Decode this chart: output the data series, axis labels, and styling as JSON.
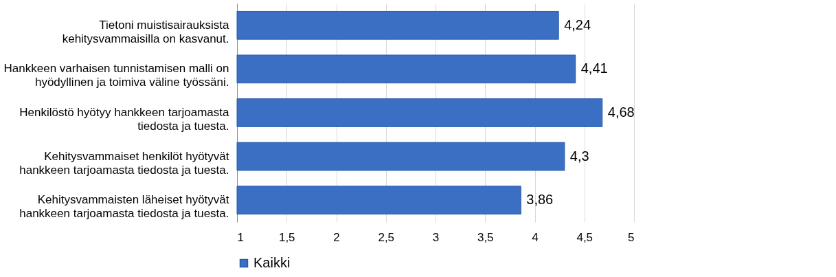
{
  "chart_data": {
    "type": "bar",
    "orientation": "horizontal",
    "categories": [
      "Tietoni muistisairauksista kehitysvammaisilla on kasvanut.",
      "Hankkeen varhaisen tunnistamisen malli on hyödyllinen ja toimiva väline työssäni.",
      "Henkilöstö hyötyy hankkeen tarjoamasta tiedosta ja tuesta.",
      "Kehitysvammaiset henkilöt hyötyvät hankkeen tarjoamasta tiedosta ja tuesta.",
      "Kehitysvammaisten läheiset hyötyvät hankkeen tarjoamasta tiedosta ja tuesta."
    ],
    "series": [
      {
        "name": "Kaikki",
        "color": "#3a6fc4",
        "values": [
          4.24,
          4.41,
          4.68,
          4.3,
          3.86
        ],
        "value_labels": [
          "4,24",
          "4,41",
          "4,68",
          "4,3",
          "3,86"
        ]
      }
    ],
    "xlim": [
      1,
      5
    ],
    "xticks": [
      1,
      {
        "value": 1.5,
        "label": "1,5"
      },
      2,
      {
        "value": 2.5,
        "label": "2,5"
      },
      3,
      {
        "value": 3.5,
        "label": "3,5"
      },
      4,
      {
        "value": 4.5,
        "label": "4,5"
      },
      5
    ],
    "grid": "x",
    "legend": "bottom"
  }
}
